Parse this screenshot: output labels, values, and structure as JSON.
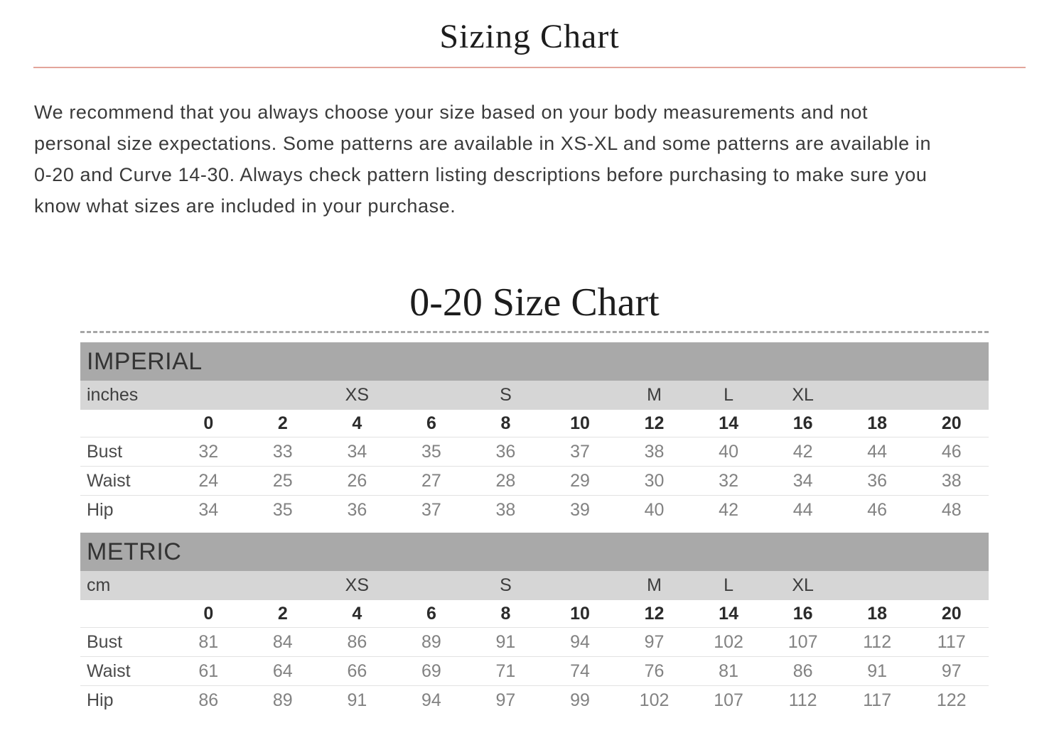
{
  "page": {
    "title": "Sizing Chart"
  },
  "intro": {
    "lines": [
      "We recommend that you always choose your size based on your body measurements and not",
      "personal size expectations. Some patterns are available in XS-XL and some patterns are available in",
      "0-20 and Curve 14-30. Always check pattern listing descriptions before purchasing to make sure you",
      "know what sizes are included in your purchase."
    ]
  },
  "size_chart": {
    "title": "0-20 Size Chart",
    "sizes": [
      "0",
      "2",
      "4",
      "6",
      "8",
      "10",
      "12",
      "14",
      "16",
      "18",
      "20"
    ],
    "size_bands": [
      "",
      "",
      "XS",
      "",
      "S",
      "",
      "M",
      "L",
      "XL",
      "",
      ""
    ],
    "sections": [
      {
        "label": "IMPERIAL",
        "unit": "inches",
        "rows": [
          {
            "label": "Bust",
            "values": [
              "32",
              "33",
              "34",
              "35",
              "36",
              "37",
              "38",
              "40",
              "42",
              "44",
              "46"
            ]
          },
          {
            "label": "Waist",
            "values": [
              "24",
              "25",
              "26",
              "27",
              "28",
              "29",
              "30",
              "32",
              "34",
              "36",
              "38"
            ]
          },
          {
            "label": "Hip",
            "values": [
              "34",
              "35",
              "36",
              "37",
              "38",
              "39",
              "40",
              "42",
              "44",
              "46",
              "48"
            ]
          }
        ]
      },
      {
        "label": "METRIC",
        "unit": "cm",
        "rows": [
          {
            "label": "Bust",
            "values": [
              "81",
              "84",
              "86",
              "89",
              "91",
              "94",
              "97",
              "102",
              "107",
              "112",
              "117"
            ]
          },
          {
            "label": "Waist",
            "values": [
              "61",
              "64",
              "66",
              "69",
              "71",
              "74",
              "76",
              "81",
              "86",
              "91",
              "97"
            ]
          },
          {
            "label": "Hip",
            "values": [
              "86",
              "89",
              "91",
              "94",
              "97",
              "99",
              "102",
              "107",
              "112",
              "117",
              "122"
            ]
          }
        ]
      }
    ]
  },
  "colors": {
    "accent_rule": "#e3a59b",
    "section_header_bg": "#a9a9a9",
    "band_row_bg": "#d6d6d6",
    "row_divider": "#e2e2e2",
    "value_text": "#828282"
  }
}
